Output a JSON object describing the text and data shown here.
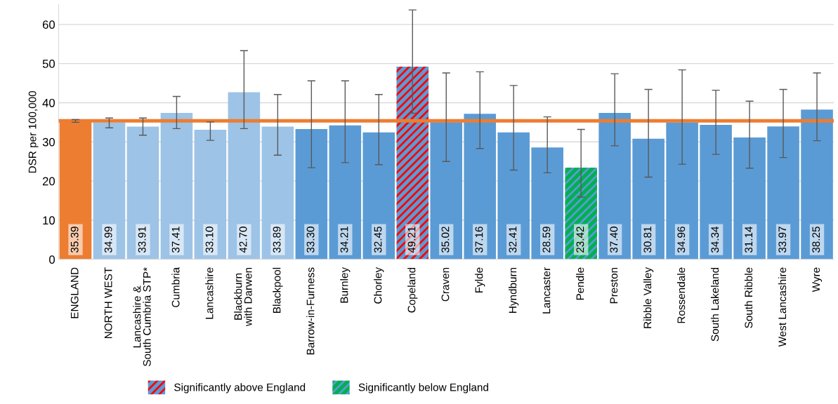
{
  "chart_data": {
    "type": "bar",
    "ylabel": "DSR per 100,000",
    "categories": [
      "ENGLAND",
      "NORTH WEST",
      "Lancashire &\nSouth Cumbria STP*",
      "Cumbria",
      "Lancashire",
      "Blackburn\nwith Darwen",
      "Blackpool",
      "Barrow-in-Furness",
      "Burnley",
      "Chorley",
      "Copeland",
      "Craven",
      "Fylde",
      "Hyndburn",
      "Lancaster",
      "Pendle",
      "Preston",
      "Ribble Valley",
      "Rossendale",
      "South Lakeland",
      "South Ribble",
      "West Lancashire",
      "Wyre"
    ],
    "series": [
      {
        "colors": [
          "#ed7d31",
          "#9dc3e6",
          "#9dc3e6",
          "#9dc3e6",
          "#9dc3e6",
          "#9dc3e6",
          "#9dc3e6",
          "#5b9bd5",
          "#5b9bd5",
          "#5b9bd5",
          null,
          "#5b9bd5",
          "#5b9bd5",
          "#5b9bd5",
          "#5b9bd5",
          null,
          "#5b9bd5",
          "#5b9bd5",
          "#5b9bd5",
          "#5b9bd5",
          "#5b9bd5",
          "#5b9bd5",
          "#5b9bd5"
        ],
        "values": [
          35.39,
          34.99,
          33.91,
          37.41,
          33.1,
          42.7,
          33.89,
          33.3,
          34.21,
          32.45,
          null,
          35.02,
          37.16,
          32.41,
          28.59,
          null,
          37.4,
          30.81,
          34.96,
          34.34,
          31.14,
          33.97,
          38.25
        ],
        "value_labels": [
          "35.39",
          "34.99",
          "33.91",
          "37.41",
          "33.10",
          "42.70",
          "33.89",
          "33.30",
          "34.21",
          "32.45",
          null,
          "35.02",
          "37.16",
          "32.41",
          "28.59",
          null,
          "37.40",
          "30.81",
          "34.96",
          "34.34",
          "31.14",
          "33.97",
          "38.25"
        ],
        "errors": [
          [
            35.0,
            35.7
          ],
          [
            33.6,
            36.1
          ],
          [
            31.7,
            36.1
          ],
          [
            33.4,
            41.6
          ],
          [
            30.4,
            35.1
          ],
          [
            33.4,
            53.3
          ],
          [
            26.6,
            42.1
          ],
          [
            23.4,
            45.6
          ],
          [
            24.7,
            45.6
          ],
          [
            24.2,
            42.1
          ],
          null,
          [
            25.0,
            47.6
          ],
          [
            28.3,
            47.9
          ],
          [
            22.8,
            44.4
          ],
          [
            22.1,
            36.4
          ],
          null,
          [
            29.0,
            47.4
          ],
          [
            21.0,
            43.4
          ],
          [
            24.3,
            48.4
          ],
          [
            26.8,
            43.2
          ],
          [
            23.3,
            40.4
          ],
          [
            26.0,
            43.4
          ],
          [
            30.3,
            47.6
          ]
        ]
      },
      {
        "name": "Significantly above England",
        "color": "#ff0000",
        "values": [
          null,
          null,
          null,
          null,
          null,
          null,
          null,
          null,
          null,
          null,
          49.21,
          null,
          null,
          null,
          null,
          null,
          null,
          null,
          null,
          null,
          null,
          null,
          null
        ],
        "value_labels": [
          null,
          null,
          null,
          null,
          null,
          null,
          null,
          null,
          null,
          null,
          "49.21",
          null,
          null,
          null,
          null,
          null,
          null,
          null,
          null,
          null,
          null,
          null,
          null
        ],
        "errors": [
          null,
          null,
          null,
          null,
          null,
          null,
          null,
          null,
          null,
          null,
          [
            37.3,
            63.7
          ],
          null,
          null,
          null,
          null,
          null,
          null,
          null,
          null,
          null,
          null,
          null,
          null
        ]
      },
      {
        "name": "Significantly below England",
        "color": "#00b050",
        "values": [
          null,
          null,
          null,
          null,
          null,
          null,
          null,
          null,
          null,
          null,
          null,
          null,
          null,
          null,
          null,
          23.42,
          null,
          null,
          null,
          null,
          null,
          null,
          null
        ],
        "value_labels": [
          null,
          null,
          null,
          null,
          null,
          null,
          null,
          null,
          null,
          null,
          null,
          null,
          null,
          null,
          null,
          "23.42",
          null,
          null,
          null,
          null,
          null,
          null,
          null
        ],
        "errors": [
          null,
          null,
          null,
          null,
          null,
          null,
          null,
          null,
          null,
          null,
          null,
          null,
          null,
          null,
          null,
          [
            15.9,
            33.2
          ],
          null,
          null,
          null,
          null,
          null,
          null,
          null
        ]
      }
    ],
    "ylim": [
      0,
      65
    ],
    "yticks": [
      0,
      10,
      20,
      30,
      40,
      50,
      60
    ],
    "ref_lines": [
      {
        "axis": "y",
        "value": 35.39,
        "color": "#ed7d31"
      }
    ],
    "grid": "y",
    "legend": "bottom"
  }
}
